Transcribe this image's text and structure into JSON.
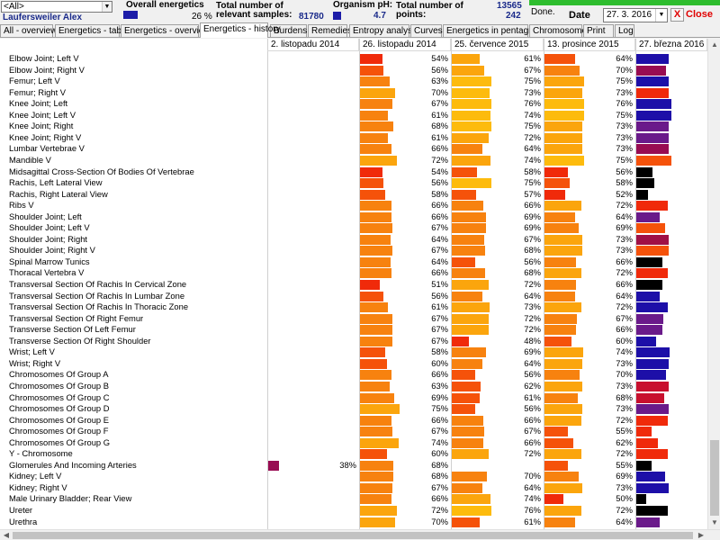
{
  "header": {
    "filter_value": "<All>",
    "patient_name": "Laufersweiler Alex",
    "overall_energetics_label": "Overall energetics",
    "overall_energetics_value": "26 %",
    "relevant_samples_label": "Total number of relevant samples:",
    "relevant_samples_value": "81780",
    "organism_ph_label": "Organism pH:",
    "organism_ph_value": "4.7",
    "total_points_label": "Total number of points:",
    "total_points_value_1": "13565",
    "total_points_value_2": "242",
    "status": "Done.",
    "date_label": "Date",
    "date_value": "27. 3. 2016",
    "close_x": "X",
    "close_label": "Close"
  },
  "tabs": [
    {
      "label": "All - overview"
    },
    {
      "label": "Energetics - table"
    },
    {
      "label": "Energetics - overview"
    },
    {
      "label": "Energetics - history"
    },
    {
      "label": "Burdens"
    },
    {
      "label": "Remedies"
    },
    {
      "label": "Entropy analysis"
    },
    {
      "label": "Curves"
    },
    {
      "label": "Energetics in pentagram"
    },
    {
      "label": "Chromosomes"
    },
    {
      "label": "Print"
    },
    {
      "label": "Log"
    }
  ],
  "active_tab": "Energetics - history",
  "columns": [
    "2. listopadu 2014",
    "26. listopadu 2014",
    "25. července 2015",
    "13. prosince 2015",
    "27. března 2016"
  ],
  "colors": {
    "red": "#f02a0a",
    "orange_red": "#f5520a",
    "orange": "#f7820f",
    "light_orange": "#fba50d",
    "yellow_orange": "#fdbb0d",
    "purple": "#6a1a8a",
    "magenta": "#a01046",
    "crimson": "#c8102e",
    "navy": "#1d0fa8",
    "black": "#000000",
    "maroon": "#980c52"
  },
  "rows": [
    {
      "label": "Elbow Joint; Left V",
      "v": [
        null,
        54,
        61,
        64,
        73
      ]
    },
    {
      "label": "Elbow Joint; Right V",
      "v": [
        null,
        56,
        67,
        70,
        70
      ]
    },
    {
      "label": "Femur; Left V",
      "v": [
        null,
        63,
        75,
        75,
        73
      ]
    },
    {
      "label": "Femur; Right V",
      "v": [
        null,
        70,
        73,
        73,
        73
      ]
    },
    {
      "label": "Knee Joint; Left",
      "v": [
        null,
        67,
        76,
        76,
        75
      ]
    },
    {
      "label": "Knee Joint; Left V",
      "v": [
        null,
        61,
        74,
        75,
        75
      ]
    },
    {
      "label": "Knee Joint; Right",
      "v": [
        null,
        68,
        75,
        73,
        73
      ]
    },
    {
      "label": "Knee Joint; Right V",
      "v": [
        null,
        61,
        72,
        73,
        73
      ]
    },
    {
      "label": "Lumbar Vertebrae V",
      "v": [
        null,
        66,
        64,
        73,
        73
      ]
    },
    {
      "label": "Mandible V",
      "v": [
        null,
        72,
        74,
        75,
        75
      ]
    },
    {
      "label": "Midsagittal Cross-Section Of Bodies Of Vertebrae",
      "v": [
        null,
        54,
        58,
        56,
        56
      ]
    },
    {
      "label": "Rachis, Left Lateral View",
      "v": [
        null,
        56,
        75,
        58,
        58
      ]
    },
    {
      "label": "Rachis, Right Lateral View",
      "v": [
        null,
        58,
        57,
        52,
        52
      ]
    },
    {
      "label": "Ribs V",
      "v": [
        null,
        66,
        66,
        72,
        72
      ]
    },
    {
      "label": "Shoulder Joint; Left",
      "v": [
        null,
        66,
        69,
        64,
        64
      ]
    },
    {
      "label": "Shoulder Joint; Left V",
      "v": [
        null,
        67,
        69,
        69,
        69
      ]
    },
    {
      "label": "Shoulder Joint; Right",
      "v": [
        null,
        64,
        67,
        73,
        73
      ]
    },
    {
      "label": "Shoulder Joint; Right V",
      "v": [
        null,
        67,
        68,
        73,
        73
      ]
    },
    {
      "label": "Spinal Marrow Tunics",
      "v": [
        null,
        64,
        56,
        66,
        66
      ]
    },
    {
      "label": "Thoracal Vertebra V",
      "v": [
        null,
        66,
        68,
        72,
        72
      ]
    },
    {
      "label": "Transversal Section Of Rachis In Cervical Zone",
      "v": [
        null,
        51,
        72,
        66,
        66
      ]
    },
    {
      "label": "Transversal Section Of Rachis In Lumbar Zone",
      "v": [
        null,
        56,
        64,
        64,
        64
      ]
    },
    {
      "label": "Transversal Section Of Rachis In Thoracic Zone",
      "v": [
        null,
        61,
        73,
        72,
        72
      ]
    },
    {
      "label": "Transversal Section Of Right Femur",
      "v": [
        null,
        67,
        72,
        67,
        67
      ]
    },
    {
      "label": "Transverse Section Of Left Femur",
      "v": [
        null,
        67,
        72,
        66,
        66
      ]
    },
    {
      "label": "Transverse Section Of Right Shoulder",
      "v": [
        null,
        67,
        48,
        60,
        60
      ]
    },
    {
      "label": "Wrist; Left V",
      "v": [
        null,
        58,
        69,
        74,
        74
      ]
    },
    {
      "label": "Wrist; Right V",
      "v": [
        null,
        60,
        64,
        73,
        73
      ]
    },
    {
      "label": "Chromosomes Of Group A",
      "v": [
        null,
        66,
        56,
        70,
        70
      ]
    },
    {
      "label": "Chromosomes Of Group B",
      "v": [
        null,
        63,
        62,
        73,
        73
      ]
    },
    {
      "label": "Chromosomes Of Group C",
      "v": [
        null,
        69,
        61,
        68,
        68
      ]
    },
    {
      "label": "Chromosomes Of Group D",
      "v": [
        null,
        75,
        56,
        73,
        73
      ]
    },
    {
      "label": "Chromosomes Of Group E",
      "v": [
        null,
        66,
        66,
        72,
        72
      ]
    },
    {
      "label": "Chromosomes Of Group F",
      "v": [
        null,
        67,
        67,
        55,
        55
      ]
    },
    {
      "label": "Chromosomes Of Group G",
      "v": [
        null,
        74,
        66,
        62,
        62
      ]
    },
    {
      "label": "Y - Chromosome",
      "v": [
        null,
        60,
        72,
        72,
        72
      ]
    },
    {
      "label": "Glomerules And Incoming Arteries",
      "v": [
        38,
        68,
        null,
        55,
        55
      ]
    },
    {
      "label": "Kidney; Left V",
      "v": [
        null,
        68,
        70,
        69,
        69
      ]
    },
    {
      "label": "Kidney; Right V",
      "v": [
        null,
        67,
        64,
        73,
        73
      ]
    },
    {
      "label": "Male Urinary Bladder; Rear View",
      "v": [
        null,
        66,
        74,
        50,
        50
      ]
    },
    {
      "label": "Ureter",
      "v": [
        null,
        72,
        76,
        72,
        72
      ]
    },
    {
      "label": "Urethra",
      "v": [
        null,
        70,
        61,
        64,
        64
      ]
    }
  ],
  "bar_colors": [
    [
      null,
      "red",
      "light_orange",
      "orange_red",
      "navy"
    ],
    [
      null,
      "orange_red",
      "light_orange",
      "orange",
      "maroon"
    ],
    [
      null,
      "orange",
      "yellow_orange",
      "light_orange",
      "navy"
    ],
    [
      null,
      "light_orange",
      "yellow_orange",
      "light_orange",
      "red"
    ],
    [
      null,
      "orange",
      "yellow_orange",
      "yellow_orange",
      "navy"
    ],
    [
      null,
      "orange",
      "yellow_orange",
      "yellow_orange",
      "navy"
    ],
    [
      null,
      "orange",
      "yellow_orange",
      "light_orange",
      "purple"
    ],
    [
      null,
      "orange",
      "light_orange",
      "light_orange",
      "purple"
    ],
    [
      null,
      "orange",
      "orange",
      "light_orange",
      "maroon"
    ],
    [
      null,
      "light_orange",
      "light_orange",
      "yellow_orange",
      "orange_red"
    ],
    [
      null,
      "red",
      "orange_red",
      "red",
      "black"
    ],
    [
      null,
      "orange_red",
      "yellow_orange",
      "orange_red",
      "black"
    ],
    [
      null,
      "orange_red",
      "orange_red",
      "red",
      "black"
    ],
    [
      null,
      "orange",
      "orange",
      "light_orange",
      "red"
    ],
    [
      null,
      "orange",
      "orange",
      "orange",
      "purple"
    ],
    [
      null,
      "orange",
      "orange",
      "orange",
      "orange_red"
    ],
    [
      null,
      "orange",
      "orange",
      "light_orange",
      "magenta"
    ],
    [
      null,
      "orange",
      "orange",
      "light_orange",
      "orange_red"
    ],
    [
      null,
      "orange",
      "orange_red",
      "orange",
      "black"
    ],
    [
      null,
      "orange",
      "orange",
      "light_orange",
      "red"
    ],
    [
      null,
      "red",
      "light_orange",
      "orange",
      "black"
    ],
    [
      null,
      "orange_red",
      "orange",
      "orange",
      "navy"
    ],
    [
      null,
      "orange",
      "light_orange",
      "light_orange",
      "navy"
    ],
    [
      null,
      "orange",
      "light_orange",
      "orange",
      "purple"
    ],
    [
      null,
      "orange",
      "light_orange",
      "orange",
      "purple"
    ],
    [
      null,
      "orange",
      "red",
      "orange_red",
      "navy"
    ],
    [
      null,
      "orange_red",
      "orange",
      "light_orange",
      "navy"
    ],
    [
      null,
      "orange_red",
      "orange",
      "light_orange",
      "navy"
    ],
    [
      null,
      "orange",
      "orange_red",
      "orange",
      "navy"
    ],
    [
      null,
      "orange",
      "orange_red",
      "light_orange",
      "crimson"
    ],
    [
      null,
      "orange",
      "orange_red",
      "orange",
      "crimson"
    ],
    [
      null,
      "light_orange",
      "orange_red",
      "light_orange",
      "purple"
    ],
    [
      null,
      "orange",
      "orange",
      "light_orange",
      "red"
    ],
    [
      null,
      "orange",
      "orange",
      "orange_red",
      "red"
    ],
    [
      null,
      "light_orange",
      "orange",
      "orange_red",
      "red"
    ],
    [
      null,
      "orange_red",
      "light_orange",
      "light_orange",
      "red"
    ],
    [
      "maroon",
      "orange",
      null,
      "orange_red",
      "black"
    ],
    [
      null,
      "orange",
      "orange",
      "orange",
      "navy"
    ],
    [
      null,
      "orange",
      "orange",
      "light_orange",
      "navy"
    ],
    [
      null,
      "orange",
      "light_orange",
      "red",
      "black"
    ],
    [
      null,
      "light_orange",
      "yellow_orange",
      "light_orange",
      "black"
    ],
    [
      null,
      "light_orange",
      "orange_red",
      "orange",
      "purple"
    ]
  ]
}
